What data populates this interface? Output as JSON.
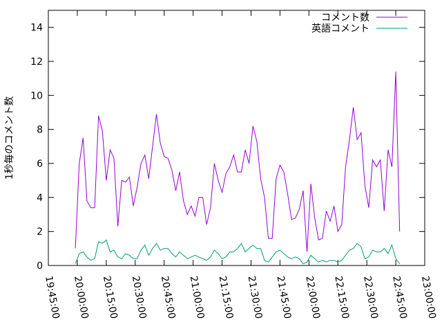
{
  "chart_data": {
    "type": "line",
    "ylabel": "1秒毎のコメント数",
    "x": [
      "19:59:00",
      "20:01:00",
      "20:03:00",
      "20:05:00",
      "20:07:00",
      "20:09:00",
      "20:11:00",
      "20:13:00",
      "20:15:00",
      "20:17:00",
      "20:19:00",
      "20:21:00",
      "20:23:00",
      "20:25:00",
      "20:27:00",
      "20:29:00",
      "20:31:00",
      "20:33:00",
      "20:35:00",
      "20:37:00",
      "20:39:00",
      "20:41:00",
      "20:43:00",
      "20:45:00",
      "20:47:00",
      "20:49:00",
      "20:51:00",
      "20:53:00",
      "20:55:00",
      "20:57:00",
      "20:59:00",
      "21:01:00",
      "21:03:00",
      "21:05:00",
      "21:07:00",
      "21:09:00",
      "21:11:00",
      "21:13:00",
      "21:15:00",
      "21:17:00",
      "21:19:00",
      "21:21:00",
      "21:23:00",
      "21:25:00",
      "21:27:00",
      "21:29:00",
      "21:31:00",
      "21:33:00",
      "21:35:00",
      "21:37:00",
      "21:39:00",
      "21:41:00",
      "21:43:00",
      "21:45:00",
      "21:47:00",
      "21:49:00",
      "21:51:00",
      "21:53:00",
      "21:55:00",
      "21:57:00",
      "21:59:00",
      "22:01:00",
      "22:03:00",
      "22:05:00",
      "22:07:00",
      "22:09:00",
      "22:11:00",
      "22:13:00",
      "22:15:00",
      "22:17:00",
      "22:19:00",
      "22:21:00",
      "22:23:00",
      "22:25:00",
      "22:27:00",
      "22:29:00",
      "22:31:00",
      "22:33:00",
      "22:35:00",
      "22:37:00",
      "22:39:00",
      "22:41:00",
      "22:43:00",
      "22:45:00",
      "22:47:00"
    ],
    "series": [
      {
        "name": "コメント数",
        "color": "#9400d3",
        "values": [
          1.0,
          6.0,
          7.5,
          3.8,
          3.4,
          3.4,
          8.8,
          7.9,
          5.0,
          6.8,
          6.3,
          2.3,
          5.0,
          4.9,
          5.2,
          3.5,
          4.6,
          6.0,
          6.5,
          5.1,
          7.0,
          8.9,
          7.2,
          6.4,
          6.3,
          5.6,
          4.4,
          5.5,
          3.8,
          3.0,
          3.5,
          2.9,
          4.0,
          4.0,
          2.4,
          3.4,
          6.0,
          5.0,
          4.3,
          5.4,
          5.8,
          6.5,
          5.5,
          5.5,
          6.8,
          6.0,
          8.2,
          7.3,
          5.1,
          4.0,
          1.6,
          1.6,
          5.1,
          5.9,
          5.5,
          4.2,
          2.7,
          2.8,
          3.3,
          4.4,
          0.8,
          4.8,
          2.8,
          1.5,
          1.6,
          3.2,
          2.6,
          3.5,
          2.0,
          2.4,
          5.8,
          7.4,
          9.3,
          7.4,
          7.8,
          4.7,
          3.4,
          6.2,
          5.8,
          6.2,
          3.2,
          6.8,
          5.8,
          11.4,
          2.0
        ]
      },
      {
        "name": "英語コメント",
        "color": "#009e73",
        "values": [
          0.1,
          0.7,
          0.8,
          0.5,
          0.3,
          0.4,
          1.4,
          1.3,
          1.5,
          0.8,
          0.9,
          0.5,
          0.4,
          0.7,
          0.6,
          0.4,
          0.4,
          0.9,
          1.2,
          0.6,
          1.0,
          1.3,
          0.9,
          1.0,
          1.0,
          0.7,
          0.5,
          0.8,
          0.6,
          0.4,
          0.5,
          0.6,
          0.5,
          0.4,
          0.3,
          0.5,
          0.9,
          0.7,
          0.4,
          0.5,
          0.8,
          0.8,
          1.0,
          1.3,
          0.8,
          1.0,
          1.2,
          1.0,
          1.0,
          0.3,
          0.2,
          0.5,
          0.8,
          0.9,
          0.7,
          0.5,
          0.4,
          0.5,
          0.4,
          0.1,
          0.2,
          0.6,
          0.4,
          0.2,
          0.3,
          0.2,
          0.3,
          0.3,
          0.2,
          0.3,
          0.6,
          0.9,
          1.0,
          1.3,
          1.1,
          0.4,
          0.5,
          0.9,
          0.8,
          0.8,
          1.0,
          0.7,
          1.2,
          0.4,
          0.1
        ]
      }
    ],
    "xlim": [
      "19:45:00",
      "23:00:00"
    ],
    "xticks": [
      "19:45:00",
      "20:00:00",
      "20:15:00",
      "20:30:00",
      "20:45:00",
      "21:00:00",
      "21:15:00",
      "21:30:00",
      "21:45:00",
      "22:00:00",
      "22:15:00",
      "22:30:00",
      "22:45:00",
      "23:00:00"
    ],
    "ylim": [
      0,
      15
    ],
    "yticks": [
      0,
      2,
      4,
      6,
      8,
      10,
      12,
      14
    ],
    "legend": "top-right"
  }
}
